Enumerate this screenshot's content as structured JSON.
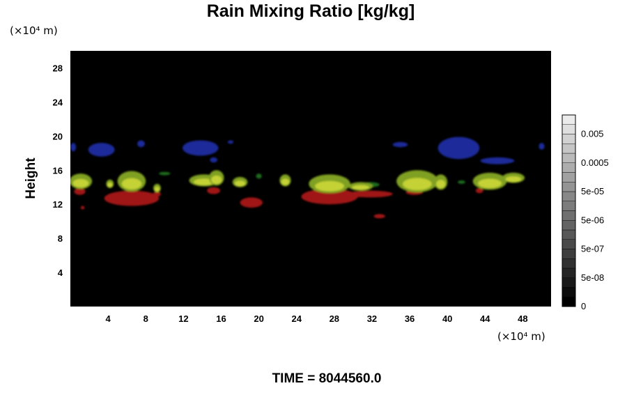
{
  "chart_data": {
    "type": "heatmap",
    "title": "Rain Mixing Ratio [kg/kg]",
    "ylabel": "Height",
    "x_unit": "(×10⁴ m)",
    "y_unit": "(×10⁴ m)",
    "xlim": [
      0,
      51
    ],
    "ylim": [
      0,
      30
    ],
    "x_ticks": [
      4,
      8,
      12,
      16,
      20,
      24,
      28,
      32,
      36,
      40,
      44,
      48
    ],
    "y_ticks": [
      4,
      8,
      12,
      16,
      20,
      24,
      28
    ],
    "background": "#000000",
    "colorbar": {
      "tick_labels": [
        "0",
        "5e-08",
        "5e-07",
        "5e-06",
        "5e-05",
        "0.0005",
        "0.005"
      ],
      "levels": 20
    },
    "features": [
      {
        "color": "blue",
        "shape": "ellipse",
        "cx": 0.3,
        "cy": 18.7,
        "rx": 0.3,
        "ry": 0.5
      },
      {
        "color": "blue",
        "shape": "ellipse",
        "cx": 3.3,
        "cy": 18.4,
        "rx": 1.4,
        "ry": 0.8
      },
      {
        "color": "blue",
        "shape": "ellipse",
        "cx": 7.5,
        "cy": 19.1,
        "rx": 0.4,
        "ry": 0.4
      },
      {
        "color": "blue",
        "shape": "ellipse",
        "cx": 13.8,
        "cy": 18.6,
        "rx": 1.9,
        "ry": 0.9
      },
      {
        "color": "blue",
        "shape": "ellipse",
        "cx": 15.2,
        "cy": 17.2,
        "rx": 0.4,
        "ry": 0.3
      },
      {
        "color": "blue",
        "shape": "ellipse",
        "cx": 17.0,
        "cy": 19.3,
        "rx": 0.3,
        "ry": 0.2
      },
      {
        "color": "blue",
        "shape": "ellipse",
        "cx": 35.0,
        "cy": 19.0,
        "rx": 0.8,
        "ry": 0.3
      },
      {
        "color": "blue",
        "shape": "ellipse",
        "cx": 41.2,
        "cy": 18.6,
        "rx": 2.2,
        "ry": 1.3
      },
      {
        "color": "blue",
        "shape": "ellipse",
        "cx": 45.3,
        "cy": 17.1,
        "rx": 1.8,
        "ry": 0.4
      },
      {
        "color": "blue",
        "shape": "ellipse",
        "cx": 50.0,
        "cy": 18.8,
        "rx": 0.3,
        "ry": 0.4
      },
      {
        "color": "green",
        "shape": "ellipse",
        "cx": 10.0,
        "cy": 15.6,
        "rx": 0.6,
        "ry": 0.2
      },
      {
        "color": "green",
        "shape": "ellipse",
        "cx": 20.0,
        "cy": 15.3,
        "rx": 0.3,
        "ry": 0.3
      },
      {
        "color": "green",
        "shape": "ellipse",
        "cx": 31.8,
        "cy": 14.3,
        "rx": 1.0,
        "ry": 0.3
      },
      {
        "color": "green",
        "shape": "ellipse",
        "cx": 41.5,
        "cy": 14.6,
        "rx": 0.4,
        "ry": 0.2
      },
      {
        "color": "red",
        "shape": "ellipse",
        "cx": 1.0,
        "cy": 13.5,
        "rx": 0.6,
        "ry": 0.4
      },
      {
        "color": "red",
        "shape": "ellipse",
        "cx": 6.5,
        "cy": 12.7,
        "rx": 2.9,
        "ry": 0.9
      },
      {
        "color": "red",
        "shape": "ellipse",
        "cx": 9.2,
        "cy": 13.2,
        "rx": 0.4,
        "ry": 0.3
      },
      {
        "color": "red",
        "shape": "ellipse",
        "cx": 15.2,
        "cy": 13.6,
        "rx": 0.7,
        "ry": 0.4
      },
      {
        "color": "red",
        "shape": "ellipse",
        "cx": 19.2,
        "cy": 12.2,
        "rx": 1.2,
        "ry": 0.6
      },
      {
        "color": "red",
        "shape": "ellipse",
        "cx": 27.5,
        "cy": 12.9,
        "rx": 3.0,
        "ry": 0.9
      },
      {
        "color": "red",
        "shape": "ellipse",
        "cx": 31.8,
        "cy": 13.2,
        "rx": 2.4,
        "ry": 0.4
      },
      {
        "color": "red",
        "shape": "ellipse",
        "cx": 32.8,
        "cy": 10.6,
        "rx": 0.6,
        "ry": 0.25
      },
      {
        "color": "red",
        "shape": "ellipse",
        "cx": 36.5,
        "cy": 13.4,
        "rx": 0.9,
        "ry": 0.3
      },
      {
        "color": "red",
        "shape": "ellipse",
        "cx": 43.4,
        "cy": 13.6,
        "rx": 0.4,
        "ry": 0.3
      },
      {
        "color": "red",
        "shape": "ellipse",
        "cx": 1.3,
        "cy": 11.6,
        "rx": 0.2,
        "ry": 0.2
      },
      {
        "color": "yellow-green",
        "shape": "ellipse",
        "cx": 1.1,
        "cy": 14.7,
        "rx": 1.2,
        "ry": 0.9
      },
      {
        "color": "yellow-green",
        "shape": "ellipse",
        "cx": 4.2,
        "cy": 14.4,
        "rx": 0.4,
        "ry": 0.5
      },
      {
        "color": "yellow-green",
        "shape": "ellipse",
        "cx": 6.5,
        "cy": 14.7,
        "rx": 1.5,
        "ry": 1.2
      },
      {
        "color": "yellow-green",
        "shape": "ellipse",
        "cx": 9.2,
        "cy": 13.9,
        "rx": 0.4,
        "ry": 0.5
      },
      {
        "color": "yellow-green",
        "shape": "ellipse",
        "cx": 14.2,
        "cy": 14.8,
        "rx": 1.6,
        "ry": 0.7
      },
      {
        "color": "yellow-green",
        "shape": "ellipse",
        "cx": 15.5,
        "cy": 15.1,
        "rx": 0.8,
        "ry": 0.9
      },
      {
        "color": "yellow-green",
        "shape": "ellipse",
        "cx": 18.0,
        "cy": 14.6,
        "rx": 0.8,
        "ry": 0.6
      },
      {
        "color": "yellow-green",
        "shape": "ellipse",
        "cx": 22.8,
        "cy": 14.8,
        "rx": 0.6,
        "ry": 0.7
      },
      {
        "color": "yellow-green",
        "shape": "ellipse",
        "cx": 27.5,
        "cy": 14.4,
        "rx": 2.2,
        "ry": 1.1
      },
      {
        "color": "yellow-green",
        "shape": "ellipse",
        "cx": 30.8,
        "cy": 14.1,
        "rx": 1.3,
        "ry": 0.5
      },
      {
        "color": "yellow-green",
        "shape": "ellipse",
        "cx": 36.8,
        "cy": 14.7,
        "rx": 2.2,
        "ry": 1.3
      },
      {
        "color": "yellow-green",
        "shape": "ellipse",
        "cx": 39.3,
        "cy": 14.6,
        "rx": 0.7,
        "ry": 0.9
      },
      {
        "color": "yellow-green",
        "shape": "ellipse",
        "cx": 44.5,
        "cy": 14.7,
        "rx": 1.8,
        "ry": 1.0
      },
      {
        "color": "yellow-green",
        "shape": "ellipse",
        "cx": 47.0,
        "cy": 15.1,
        "rx": 1.2,
        "ry": 0.6
      }
    ]
  },
  "time_label": "TIME = 8044560.0"
}
